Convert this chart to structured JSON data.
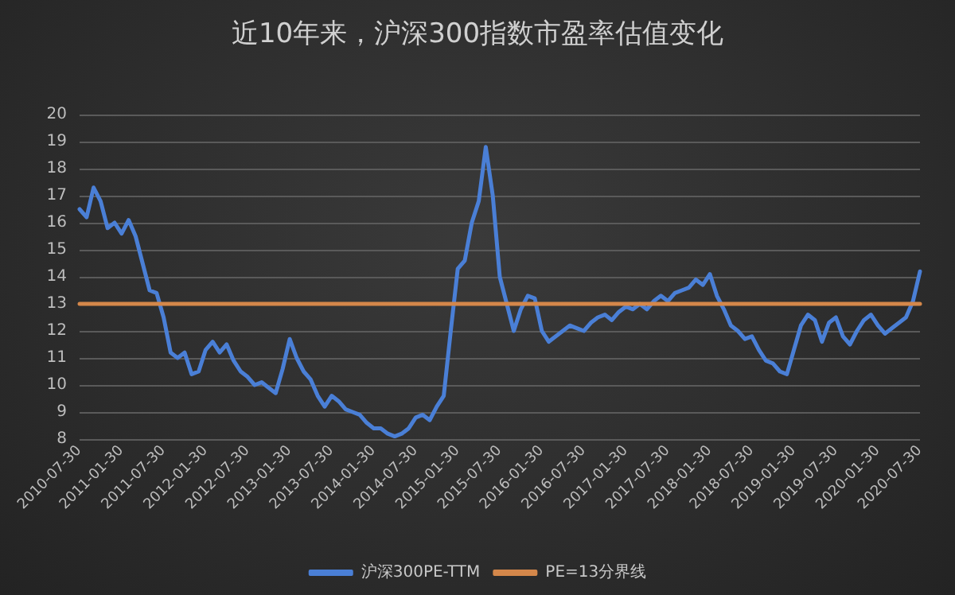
{
  "chart_data": {
    "type": "line",
    "title": "近10年来，沪深300指数市盈率估值变化",
    "categories": [
      "2010-07-30",
      null,
      null,
      null,
      null,
      null,
      "2011-01-30",
      null,
      null,
      null,
      null,
      null,
      "2011-07-30",
      null,
      null,
      null,
      null,
      null,
      "2012-01-30",
      null,
      null,
      null,
      null,
      null,
      "2012-07-30",
      null,
      null,
      null,
      null,
      null,
      "2013-01-30",
      null,
      null,
      null,
      null,
      null,
      "2013-07-30",
      null,
      null,
      null,
      null,
      null,
      "2014-01-30",
      null,
      null,
      null,
      null,
      null,
      "2014-07-30",
      null,
      null,
      null,
      null,
      null,
      "2015-01-30",
      null,
      null,
      null,
      null,
      null,
      "2015-07-30",
      null,
      null,
      null,
      null,
      null,
      "2016-01-30",
      null,
      null,
      null,
      null,
      null,
      "2016-07-30",
      null,
      null,
      null,
      null,
      null,
      "2017-01-30",
      null,
      null,
      null,
      null,
      null,
      "2017-07-30",
      null,
      null,
      null,
      null,
      null,
      "2018-01-30",
      null,
      null,
      null,
      null,
      null,
      "2018-07-30",
      null,
      null,
      null,
      null,
      null,
      "2019-01-30",
      null,
      null,
      null,
      null,
      null,
      "2019-07-30",
      null,
      null,
      null,
      null,
      null,
      "2020-01-30",
      null,
      null,
      null,
      null,
      null,
      "2020-07-30"
    ],
    "series": [
      {
        "name": "沪深300PE-TTM",
        "color": "#4a7fd6",
        "values": [
          16.5,
          16.2,
          17.3,
          16.8,
          15.8,
          16.0,
          15.6,
          16.1,
          15.5,
          14.5,
          13.5,
          13.4,
          12.5,
          11.2,
          11.0,
          11.2,
          10.4,
          10.5,
          11.3,
          11.6,
          11.2,
          11.5,
          10.9,
          10.5,
          10.3,
          10.0,
          10.1,
          9.9,
          9.7,
          10.6,
          11.7,
          11.0,
          10.5,
          10.2,
          9.6,
          9.2,
          9.6,
          9.4,
          9.1,
          9.0,
          8.9,
          8.6,
          8.4,
          8.4,
          8.2,
          8.1,
          8.2,
          8.4,
          8.8,
          8.9,
          8.7,
          9.2,
          9.6,
          12.0,
          14.3,
          14.6,
          16.0,
          16.8,
          18.8,
          17.0,
          14.0,
          13.0,
          12.0,
          12.8,
          13.3,
          13.2,
          12.0,
          11.6,
          11.8,
          12.0,
          12.2,
          12.1,
          12.0,
          12.3,
          12.5,
          12.6,
          12.4,
          12.7,
          12.9,
          12.8,
          13.0,
          12.8,
          13.1,
          13.3,
          13.1,
          13.4,
          13.5,
          13.6,
          13.9,
          13.7,
          14.1,
          13.3,
          12.8,
          12.2,
          12.0,
          11.7,
          11.8,
          11.3,
          10.9,
          10.8,
          10.5,
          10.4,
          11.3,
          12.2,
          12.6,
          12.4,
          11.6,
          12.3,
          12.5,
          11.8,
          11.5,
          12.0,
          12.4,
          12.6,
          12.2,
          11.9,
          12.1,
          12.3,
          12.5,
          13.1,
          14.2
        ]
      },
      {
        "name": "PE=13分界线",
        "color": "#d4874a",
        "values": [
          13,
          13,
          13,
          13,
          13,
          13,
          13,
          13,
          13,
          13,
          13,
          13,
          13,
          13,
          13,
          13,
          13,
          13,
          13,
          13,
          13,
          13,
          13,
          13,
          13,
          13,
          13,
          13,
          13,
          13,
          13,
          13,
          13,
          13,
          13,
          13,
          13,
          13,
          13,
          13,
          13,
          13,
          13,
          13,
          13,
          13,
          13,
          13,
          13,
          13,
          13,
          13,
          13,
          13,
          13,
          13,
          13,
          13,
          13,
          13,
          13,
          13,
          13,
          13,
          13,
          13,
          13,
          13,
          13,
          13,
          13,
          13,
          13,
          13,
          13,
          13,
          13,
          13,
          13,
          13,
          13,
          13,
          13,
          13,
          13,
          13,
          13,
          13,
          13,
          13,
          13,
          13,
          13,
          13,
          13,
          13,
          13,
          13,
          13,
          13,
          13,
          13,
          13,
          13,
          13,
          13,
          13,
          13,
          13,
          13,
          13,
          13,
          13,
          13,
          13,
          13,
          13,
          13,
          13,
          13,
          13
        ]
      }
    ],
    "ylim": [
      8,
      20
    ],
    "yticks": [
      8,
      9,
      10,
      11,
      12,
      13,
      14,
      15,
      16,
      17,
      18,
      19,
      20
    ],
    "grid": "y",
    "legend": "bottom",
    "marker": "none",
    "line_style": "solid"
  }
}
